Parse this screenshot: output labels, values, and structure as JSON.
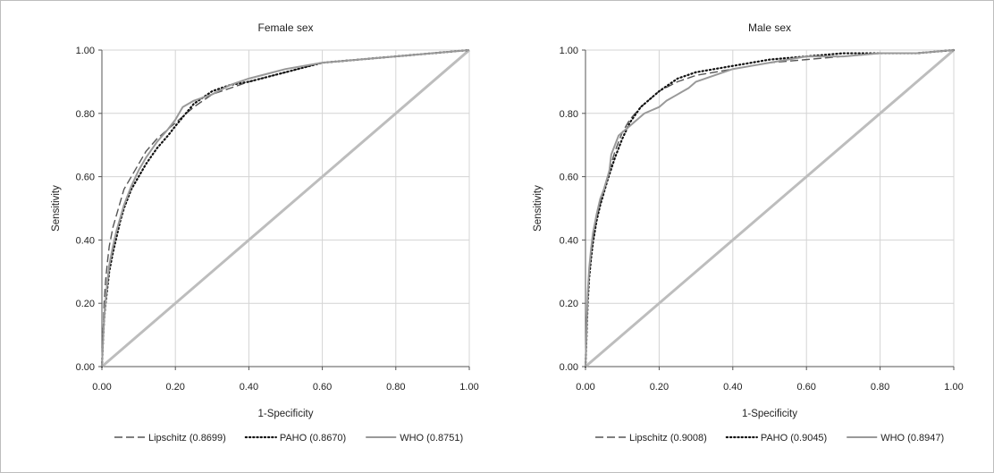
{
  "chart_data": [
    {
      "type": "line",
      "title": "Female sex",
      "xlabel": "1-Specificity",
      "ylabel": "Sensitivity",
      "xlim": [
        0,
        1
      ],
      "ylim": [
        0,
        1
      ],
      "grid": true,
      "legend_position": "bottom",
      "xticks": [
        "0.00",
        "0.20",
        "0.40",
        "0.60",
        "0.80",
        "1.00"
      ],
      "yticks": [
        "0.00",
        "0.20",
        "0.40",
        "0.60",
        "0.80",
        "1.00"
      ],
      "series": [
        {
          "name": "Lipschitz",
          "legend_label": "Lipschitz (0.8699)",
          "style": "dashed",
          "color": "#555555",
          "x": [
            0,
            0.003,
            0.006,
            0.01,
            0.015,
            0.02,
            0.03,
            0.04,
            0.05,
            0.06,
            0.08,
            0.1,
            0.12,
            0.15,
            0.18,
            0.2,
            0.25,
            0.3,
            0.35,
            0.4,
            0.5,
            0.6,
            0.7,
            0.8,
            0.9,
            1.0
          ],
          "y": [
            0,
            0.1,
            0.2,
            0.27,
            0.33,
            0.38,
            0.44,
            0.48,
            0.52,
            0.56,
            0.6,
            0.64,
            0.68,
            0.72,
            0.75,
            0.77,
            0.82,
            0.86,
            0.88,
            0.9,
            0.93,
            0.96,
            0.97,
            0.98,
            0.99,
            1.0
          ]
        },
        {
          "name": "PAHO",
          "legend_label": "PAHO (0.8670)",
          "style": "dotted",
          "color": "#111111",
          "x": [
            0,
            0.003,
            0.006,
            0.01,
            0.015,
            0.02,
            0.03,
            0.04,
            0.05,
            0.06,
            0.08,
            0.1,
            0.12,
            0.15,
            0.18,
            0.2,
            0.25,
            0.3,
            0.35,
            0.4,
            0.5,
            0.6,
            0.7,
            0.8,
            0.9,
            1.0
          ],
          "y": [
            0,
            0.08,
            0.15,
            0.2,
            0.25,
            0.3,
            0.36,
            0.41,
            0.46,
            0.5,
            0.56,
            0.6,
            0.64,
            0.69,
            0.73,
            0.76,
            0.83,
            0.87,
            0.89,
            0.9,
            0.93,
            0.96,
            0.97,
            0.98,
            0.99,
            1.0
          ]
        },
        {
          "name": "WHO",
          "legend_label": "WHO (0.8751)",
          "style": "solid",
          "color": "#999999",
          "x": [
            0,
            0.003,
            0.006,
            0.01,
            0.015,
            0.02,
            0.03,
            0.04,
            0.05,
            0.06,
            0.08,
            0.1,
            0.12,
            0.15,
            0.18,
            0.2,
            0.22,
            0.25,
            0.3,
            0.35,
            0.4,
            0.5,
            0.6,
            0.7,
            0.8,
            0.9,
            1.0
          ],
          "y": [
            0,
            0.08,
            0.15,
            0.21,
            0.27,
            0.32,
            0.38,
            0.43,
            0.47,
            0.51,
            0.57,
            0.62,
            0.66,
            0.71,
            0.75,
            0.78,
            0.82,
            0.84,
            0.86,
            0.89,
            0.91,
            0.94,
            0.96,
            0.97,
            0.98,
            0.99,
            1.0
          ]
        },
        {
          "name": "reference",
          "style": "solid-thick",
          "color": "#bdbdbd",
          "x": [
            0,
            1
          ],
          "y": [
            0,
            1
          ]
        }
      ]
    },
    {
      "type": "line",
      "title": "Male sex",
      "xlabel": "1-Specificity",
      "ylabel": "Sensitivity",
      "xlim": [
        0,
        1
      ],
      "ylim": [
        0,
        1
      ],
      "grid": true,
      "legend_position": "bottom",
      "xticks": [
        "0.00",
        "0.20",
        "0.40",
        "0.60",
        "0.80",
        "1.00"
      ],
      "yticks": [
        "0.00",
        "0.20",
        "0.40",
        "0.60",
        "0.80",
        "1.00"
      ],
      "series": [
        {
          "name": "Lipschitz",
          "legend_label": "Lipschitz (0.9008)",
          "style": "dashed",
          "color": "#555555",
          "x": [
            0,
            0.003,
            0.006,
            0.01,
            0.015,
            0.02,
            0.03,
            0.04,
            0.05,
            0.06,
            0.08,
            0.1,
            0.12,
            0.15,
            0.18,
            0.2,
            0.25,
            0.3,
            0.35,
            0.4,
            0.45,
            0.5,
            0.6,
            0.7,
            0.8,
            0.9,
            1.0
          ],
          "y": [
            0,
            0.12,
            0.22,
            0.3,
            0.36,
            0.4,
            0.47,
            0.52,
            0.56,
            0.6,
            0.68,
            0.74,
            0.78,
            0.82,
            0.85,
            0.87,
            0.9,
            0.92,
            0.93,
            0.94,
            0.95,
            0.96,
            0.97,
            0.98,
            0.99,
            0.99,
            1.0
          ]
        },
        {
          "name": "PAHO",
          "legend_label": "PAHO (0.9045)",
          "style": "dotted",
          "color": "#111111",
          "x": [
            0,
            0.003,
            0.006,
            0.01,
            0.015,
            0.02,
            0.03,
            0.04,
            0.05,
            0.06,
            0.08,
            0.1,
            0.12,
            0.15,
            0.18,
            0.2,
            0.25,
            0.3,
            0.35,
            0.4,
            0.45,
            0.5,
            0.6,
            0.7,
            0.8,
            0.9,
            1.0
          ],
          "y": [
            0,
            0.1,
            0.2,
            0.28,
            0.34,
            0.39,
            0.46,
            0.51,
            0.55,
            0.59,
            0.66,
            0.72,
            0.77,
            0.82,
            0.85,
            0.87,
            0.91,
            0.93,
            0.94,
            0.95,
            0.96,
            0.97,
            0.98,
            0.99,
            0.99,
            0.99,
            1.0
          ]
        },
        {
          "name": "WHO",
          "legend_label": "WHO (0.8947)",
          "style": "solid",
          "color": "#999999",
          "x": [
            0,
            0.003,
            0.006,
            0.01,
            0.015,
            0.02,
            0.03,
            0.04,
            0.05,
            0.06,
            0.065,
            0.07,
            0.08,
            0.09,
            0.1,
            0.12,
            0.14,
            0.16,
            0.18,
            0.2,
            0.22,
            0.25,
            0.28,
            0.3,
            0.35,
            0.4,
            0.45,
            0.5,
            0.55,
            0.6,
            0.7,
            0.8,
            0.9,
            1.0
          ],
          "y": [
            0,
            0.12,
            0.23,
            0.31,
            0.37,
            0.42,
            0.48,
            0.53,
            0.56,
            0.6,
            0.62,
            0.67,
            0.7,
            0.73,
            0.74,
            0.76,
            0.78,
            0.8,
            0.81,
            0.82,
            0.84,
            0.86,
            0.88,
            0.9,
            0.92,
            0.94,
            0.95,
            0.96,
            0.97,
            0.98,
            0.98,
            0.99,
            0.99,
            1.0
          ]
        },
        {
          "name": "reference",
          "style": "solid-thick",
          "color": "#bdbdbd",
          "x": [
            0,
            1
          ],
          "y": [
            0,
            1
          ]
        }
      ]
    }
  ]
}
